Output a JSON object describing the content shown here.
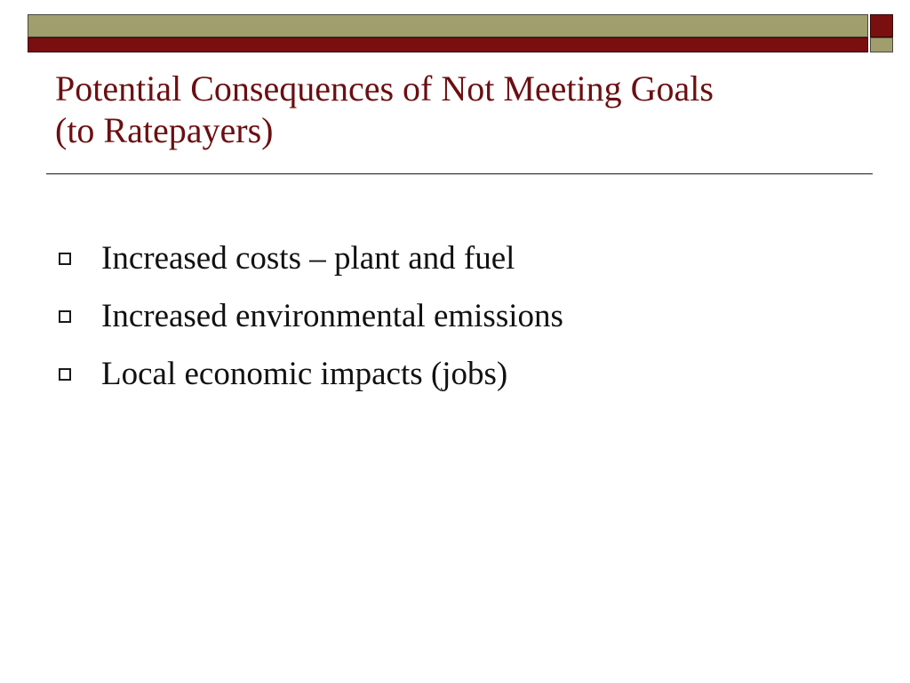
{
  "theme": {
    "olive": "#a09e6c",
    "maroon": "#7a0f10",
    "title_color": "#6b0f12",
    "text_color": "#111111"
  },
  "slide": {
    "title_lines": [
      "Potential Consequences of Not Meeting Goals",
      "(to Ratepayers)"
    ],
    "bullets": [
      "Increased costs – plant and fuel",
      "Increased environmental emissions",
      "Local economic impacts (jobs)"
    ]
  }
}
